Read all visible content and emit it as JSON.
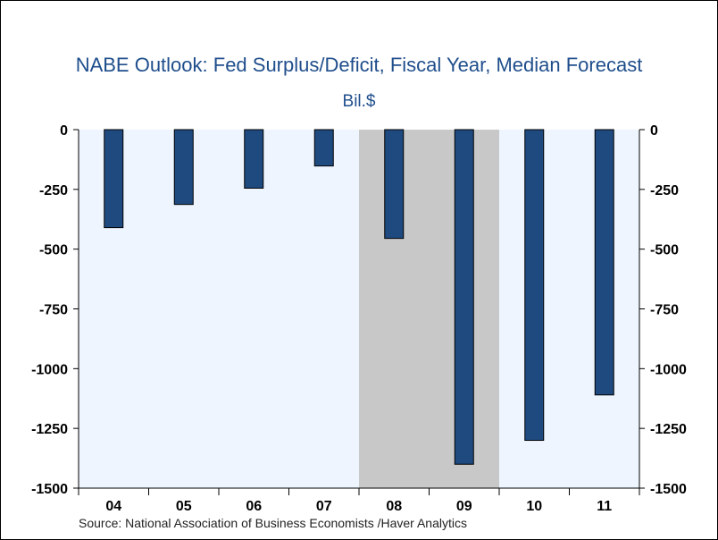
{
  "chart_data": {
    "type": "bar",
    "title": "NABE Outlook: Fed Surplus/Deficit, Fiscal Year, Median Forecast",
    "units": "Bil.$",
    "source": "Source:  National Association of Business Economists /Haver Analytics",
    "categories": [
      "04",
      "05",
      "06",
      "07",
      "08",
      "09",
      "10",
      "11"
    ],
    "values": [
      -410,
      -313,
      -245,
      -152,
      -455,
      -1400,
      -1300,
      -1110
    ],
    "ylim": [
      -1500,
      0
    ],
    "yticks": [
      0,
      -250,
      -500,
      -750,
      -1000,
      -1250,
      -1500
    ],
    "shaded_category": "08-09 recession band",
    "shaded_from_category": "08",
    "shaded_to_category": "09",
    "colors": {
      "bar": "#1f4a80",
      "plot_bg": "#eef5ff",
      "shade": "#c8c8c8",
      "title": "#1f4e8c"
    },
    "grid": false,
    "legend": "none"
  }
}
